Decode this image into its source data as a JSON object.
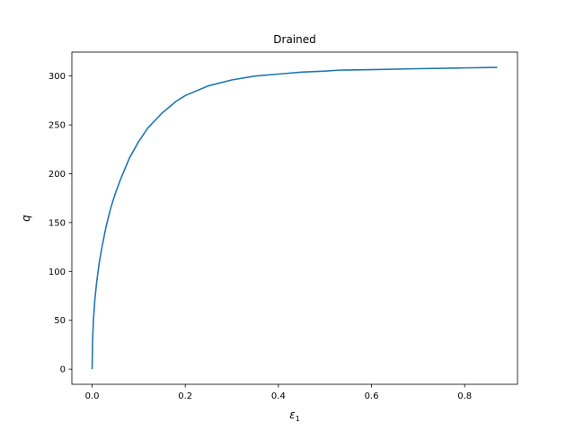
{
  "chart_data": {
    "type": "line",
    "title": "Drained",
    "xlabel": "ε",
    "xlabel_subscript": "1",
    "ylabel": "q",
    "xlim": [
      -0.0435,
      0.9135
    ],
    "ylim": [
      -15.5,
      324.5
    ],
    "xticks": [
      0.0,
      0.2,
      0.4,
      0.6,
      0.8
    ],
    "xtick_labels": [
      "0.0",
      "0.2",
      "0.4",
      "0.6",
      "0.8"
    ],
    "yticks": [
      0,
      50,
      100,
      150,
      200,
      250,
      300
    ],
    "ytick_labels": [
      "0",
      "50",
      "100",
      "150",
      "200",
      "250",
      "300"
    ],
    "grid": false,
    "legend": "none",
    "series": [
      {
        "color": "#1f77b4",
        "x": [
          0.0,
          0.001,
          0.003,
          0.006,
          0.01,
          0.015,
          0.02,
          0.03,
          0.04,
          0.05,
          0.06,
          0.08,
          0.1,
          0.12,
          0.15,
          0.18,
          0.2,
          0.25,
          0.3,
          0.35,
          0.4,
          0.45,
          0.5,
          0.53,
          0.6,
          0.7,
          0.8,
          0.87
        ],
        "y": [
          0,
          30,
          52,
          72,
          90,
          108,
          122,
          146,
          165,
          180,
          193,
          216,
          233,
          247,
          262,
          274,
          280,
          290,
          296,
          300,
          302,
          304,
          305,
          306,
          306.5,
          307.5,
          308.3,
          308.8
        ]
      }
    ]
  }
}
